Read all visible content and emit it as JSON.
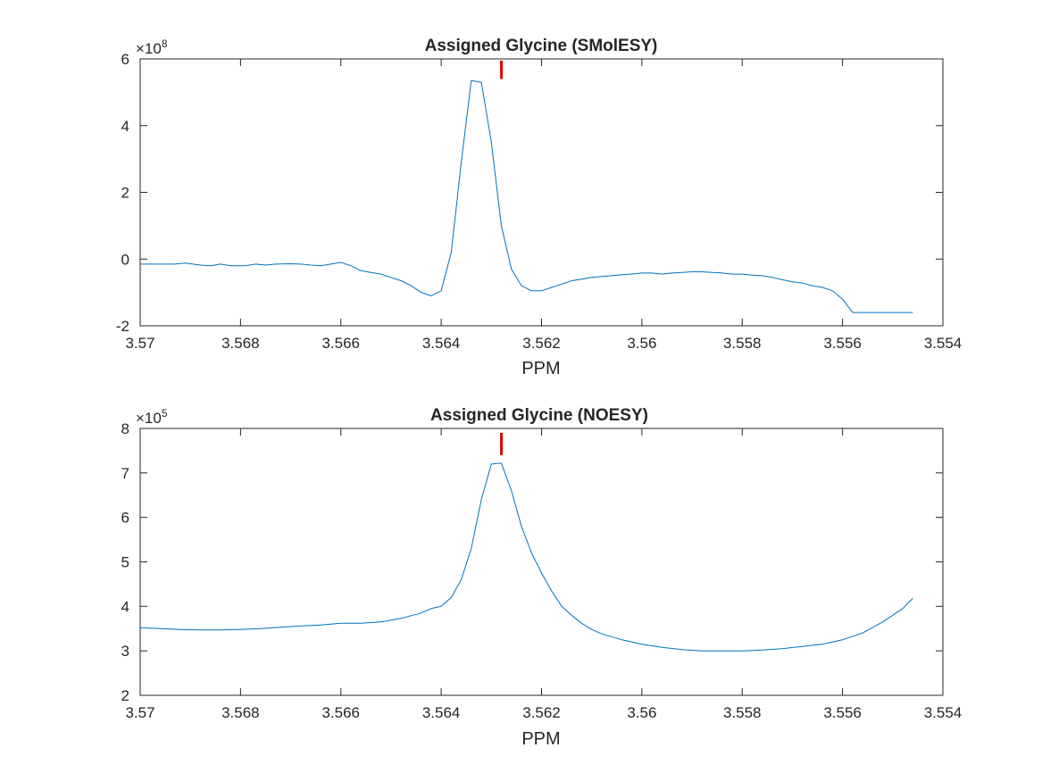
{
  "chart_data": [
    {
      "type": "line",
      "title": "Assigned Glycine (SMolESY)",
      "xlabel": "PPM",
      "ylabel": "",
      "x_reversed": true,
      "xlim": [
        3.554,
        3.57
      ],
      "ylim": [
        -2,
        6
      ],
      "y_exponent_base": "×10",
      "y_exponent": "8",
      "x_ticks": [
        3.57,
        3.568,
        3.566,
        3.564,
        3.562,
        3.56,
        3.558,
        3.556,
        3.554
      ],
      "x_tick_labels": [
        "3.57",
        "3.568",
        "3.566",
        "3.564",
        "3.562",
        "3.56",
        "3.558",
        "3.556",
        "3.554"
      ],
      "y_ticks": [
        -2,
        0,
        2,
        4,
        6
      ],
      "y_tick_labels": [
        "-2",
        "0",
        "2",
        "4",
        "6"
      ],
      "peak_marker": {
        "x": 3.5628,
        "y_from": 5.4,
        "y_to": 5.95,
        "color": "#e00000"
      },
      "color": "#0072bd",
      "x": [
        3.57,
        3.5693,
        3.5691,
        3.5688,
        3.5686,
        3.5684,
        3.5682,
        3.5679,
        3.5677,
        3.5675,
        3.5673,
        3.567,
        3.5668,
        3.5666,
        3.5664,
        3.5662,
        3.566,
        3.5658,
        3.5656,
        3.5654,
        3.5652,
        3.565,
        3.5648,
        3.5646,
        3.5644,
        3.5642,
        3.564,
        3.5638,
        3.5636,
        3.5634,
        3.5632,
        3.563,
        3.5628,
        3.5626,
        3.5624,
        3.5622,
        3.562,
        3.5618,
        3.5616,
        3.5614,
        3.5612,
        3.561,
        3.5608,
        3.5606,
        3.5604,
        3.5602,
        3.56,
        3.5598,
        3.5596,
        3.5594,
        3.5592,
        3.559,
        3.5588,
        3.5586,
        3.5584,
        3.5582,
        3.558,
        3.5578,
        3.5576,
        3.5574,
        3.5572,
        3.557,
        3.5568,
        3.5566,
        3.5564,
        3.5562,
        3.556,
        3.5558,
        3.5556,
        3.5554,
        3.5552,
        3.555,
        3.5548,
        3.5546
      ],
      "y": [
        -0.15,
        -0.15,
        -0.12,
        -0.18,
        -0.2,
        -0.15,
        -0.2,
        -0.2,
        -0.15,
        -0.18,
        -0.15,
        -0.14,
        -0.15,
        -0.18,
        -0.2,
        -0.15,
        -0.1,
        -0.2,
        -0.35,
        -0.4,
        -0.45,
        -0.55,
        -0.65,
        -0.8,
        -1.0,
        -1.1,
        -0.95,
        0.2,
        2.9,
        5.35,
        5.3,
        3.5,
        1.0,
        -0.3,
        -0.8,
        -0.95,
        -0.95,
        -0.85,
        -0.75,
        -0.65,
        -0.6,
        -0.55,
        -0.52,
        -0.5,
        -0.47,
        -0.45,
        -0.42,
        -0.42,
        -0.45,
        -0.42,
        -0.4,
        -0.38,
        -0.38,
        -0.4,
        -0.42,
        -0.45,
        -0.45,
        -0.48,
        -0.5,
        -0.55,
        -0.62,
        -0.68,
        -0.72,
        -0.8,
        -0.85,
        -0.95,
        -1.2,
        -1.6,
        -1.6,
        -1.6,
        -1.6,
        -1.6,
        -1.6,
        -1.6
      ]
    },
    {
      "type": "line",
      "title": "Assigned Glycine (NOESY)",
      "xlabel": "PPM",
      "ylabel": "",
      "x_reversed": true,
      "xlim": [
        3.554,
        3.57
      ],
      "ylim": [
        2,
        8
      ],
      "y_exponent_base": "×10",
      "y_exponent": "5",
      "x_ticks": [
        3.57,
        3.568,
        3.566,
        3.564,
        3.562,
        3.56,
        3.558,
        3.556,
        3.554
      ],
      "x_tick_labels": [
        "3.57",
        "3.568",
        "3.566",
        "3.564",
        "3.562",
        "3.56",
        "3.558",
        "3.556",
        "3.554"
      ],
      "y_ticks": [
        2,
        3,
        4,
        5,
        6,
        7,
        8
      ],
      "y_tick_labels": [
        "2",
        "3",
        "4",
        "5",
        "6",
        "7",
        "8"
      ],
      "peak_marker": {
        "x": 3.5628,
        "y_from": 7.4,
        "y_to": 7.9,
        "color": "#e00000"
      },
      "color": "#0072bd",
      "x": [
        3.57,
        3.5696,
        3.5692,
        3.5688,
        3.5684,
        3.568,
        3.5676,
        3.5672,
        3.5668,
        3.5664,
        3.566,
        3.5656,
        3.5652,
        3.5648,
        3.5644,
        3.5642,
        3.564,
        3.5638,
        3.5636,
        3.5634,
        3.5632,
        3.563,
        3.5628,
        3.5626,
        3.5624,
        3.5622,
        3.562,
        3.5618,
        3.5616,
        3.5614,
        3.5612,
        3.561,
        3.5608,
        3.5604,
        3.56,
        3.5596,
        3.5592,
        3.5588,
        3.5584,
        3.558,
        3.5576,
        3.5572,
        3.5568,
        3.5564,
        3.556,
        3.5556,
        3.5552,
        3.5548,
        3.5546
      ],
      "y": [
        3.52,
        3.5,
        3.48,
        3.47,
        3.47,
        3.48,
        3.5,
        3.53,
        3.56,
        3.58,
        3.62,
        3.62,
        3.65,
        3.73,
        3.85,
        3.95,
        4.0,
        4.2,
        4.6,
        5.3,
        6.4,
        7.2,
        7.22,
        6.6,
        5.8,
        5.2,
        4.75,
        4.35,
        4.0,
        3.8,
        3.62,
        3.48,
        3.38,
        3.25,
        3.15,
        3.08,
        3.03,
        3.0,
        3.0,
        3.0,
        3.02,
        3.05,
        3.1,
        3.15,
        3.25,
        3.4,
        3.65,
        3.95,
        4.18
      ]
    }
  ]
}
